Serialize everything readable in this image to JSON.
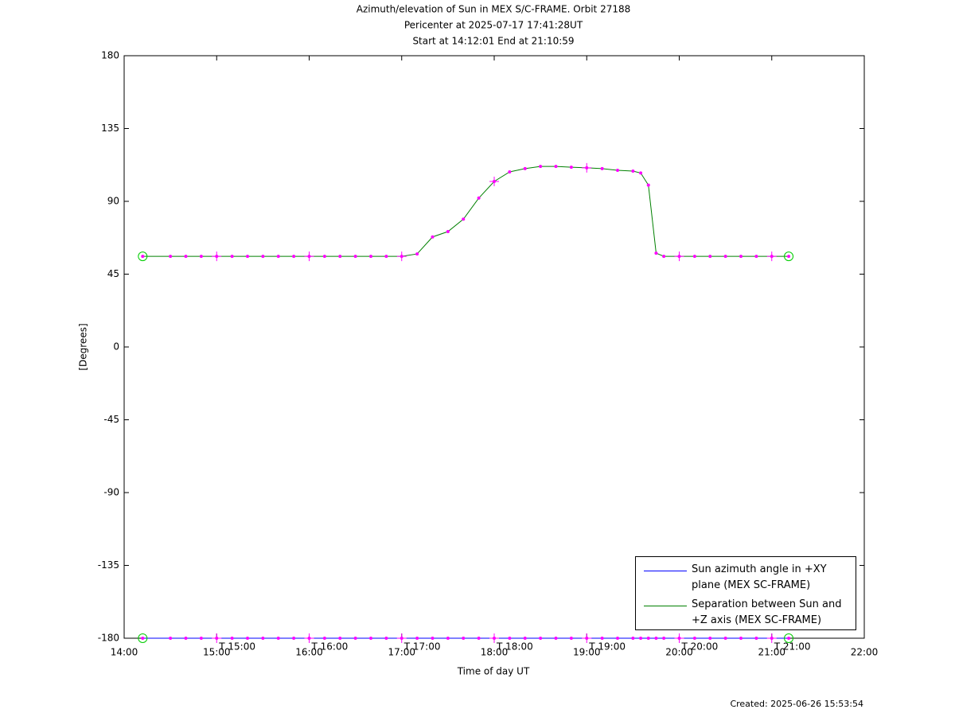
{
  "chart_data": {
    "type": "line",
    "title": "Azimuth/elevation of Sun in MEX S/C-FRAME.  Orbit 27188",
    "subtitle": [
      "Pericenter at 2025-07-17 17:41:28UT",
      "Start at 14:12:01 End at 21:10:59"
    ],
    "xlabel": "Time of day UT",
    "ylabel": "[Degrees]",
    "footer": "Created: 2025-06-26 15:53:54",
    "x": [
      14.2003,
      14.5,
      14.6667,
      14.8333,
      15,
      15.1667,
      15.3333,
      15.5,
      15.6667,
      15.8333,
      16,
      16.1667,
      16.3333,
      16.5,
      16.6667,
      16.8333,
      17,
      17.1667,
      17.3333,
      17.5,
      17.6667,
      17.8333,
      18,
      18.1667,
      18.3333,
      18.5,
      18.6667,
      18.8333,
      19,
      19.1667,
      19.3333,
      19.5,
      19.5833,
      19.6667,
      19.75,
      19.8333,
      20,
      20.1667,
      20.3333,
      20.5,
      20.6667,
      20.8333,
      21,
      21.1831
    ],
    "series": [
      {
        "name": "Sun azimuth angle in +XY plane (MEX SC-FRAME)",
        "color": "#0000ff",
        "values": [
          -180,
          -180,
          -180,
          -180,
          -180,
          -180,
          -180,
          -180,
          -180,
          -180,
          -180,
          -180,
          -180,
          -180,
          -180,
          -180,
          -180,
          -180,
          -180,
          -180,
          -180,
          -180,
          -180,
          -180,
          -180,
          -180,
          -180,
          -180,
          -180,
          -180,
          -180,
          -180,
          -180,
          -180,
          -180,
          -180,
          -180,
          -180,
          -180,
          -180,
          -180,
          -180,
          -180,
          -180
        ]
      },
      {
        "name": "Separation between Sun and +Z axis (MEX SC-FRAME)",
        "color": "#008000",
        "values": [
          56,
          56,
          56,
          56,
          56,
          56,
          56,
          56,
          56,
          56,
          56,
          56,
          56,
          56,
          56,
          56,
          56,
          57.5,
          68,
          71.3,
          79,
          92,
          102.3,
          108.2,
          110.2,
          111.6,
          111.6,
          111.1,
          110.7,
          110.2,
          109.2,
          108.7,
          107.5,
          100,
          58,
          56,
          56,
          56,
          56,
          56,
          56,
          56,
          56,
          56
        ]
      }
    ],
    "marker_color": "#ff00ff",
    "endpoint_color": "#00cc00",
    "xlim": [
      14,
      22
    ],
    "xticks": [
      {
        "value": 14,
        "label": "14:00"
      },
      {
        "value": 15,
        "label": "15:00"
      },
      {
        "value": 16,
        "label": "16:00"
      },
      {
        "value": 17,
        "label": "17:00"
      },
      {
        "value": 18,
        "label": "18:00"
      },
      {
        "value": 19,
        "label": "19:00"
      },
      {
        "value": 20,
        "label": "20:00"
      },
      {
        "value": 21,
        "label": "21:00"
      },
      {
        "value": 22,
        "label": "22:00"
      }
    ],
    "ylim": [
      -180,
      180
    ],
    "yticks": [
      -180,
      -135,
      -90,
      -45,
      0,
      45,
      90,
      135,
      180
    ],
    "annotations": [
      {
        "text": "T 15:00",
        "x": 15
      },
      {
        "text": "T 16:00",
        "x": 16
      },
      {
        "text": "T 17:00",
        "x": 17
      },
      {
        "text": "T 18:00",
        "x": 18
      },
      {
        "text": "T 19:00",
        "x": 19
      },
      {
        "text": "T 20:00",
        "x": 20
      },
      {
        "text": "T 21:00",
        "x": 21
      }
    ],
    "grid": false
  }
}
